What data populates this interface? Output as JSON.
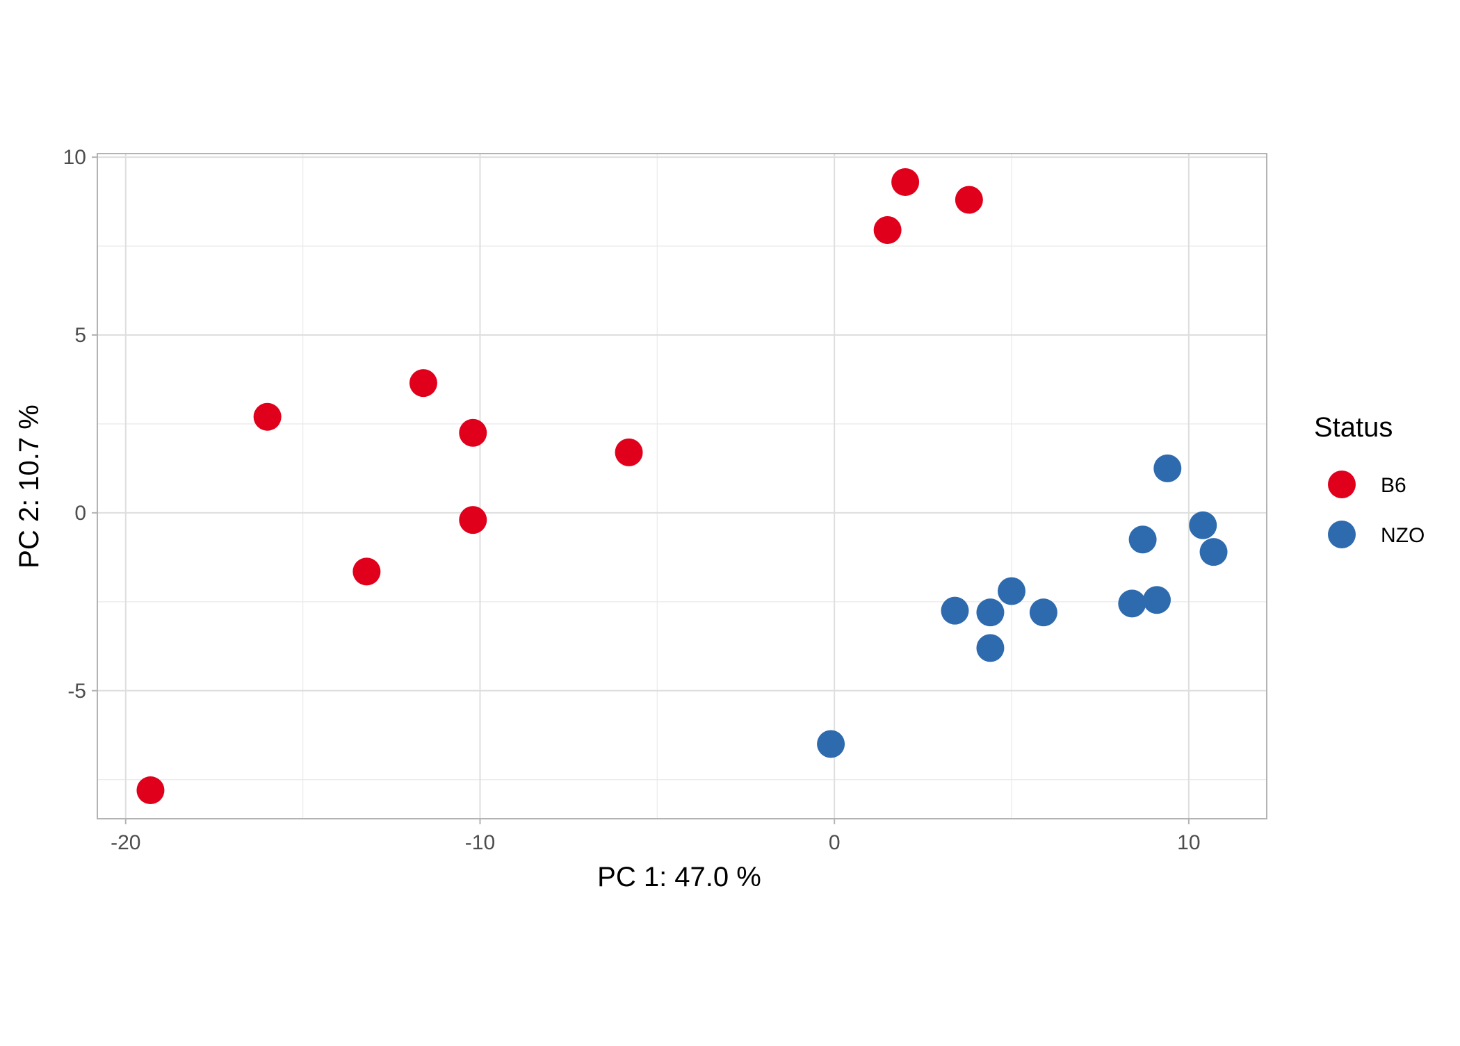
{
  "chart_data": {
    "type": "scatter",
    "xlabel": "PC 1: 47.0 %",
    "ylabel": "PC 2: 10.7 %",
    "xlim": [
      -20.8,
      12.2
    ],
    "ylim": [
      -8.6,
      10.1
    ],
    "x_ticks": [
      -20,
      -10,
      0,
      10
    ],
    "y_ticks": [
      -5,
      0,
      5,
      10
    ],
    "x_tick_labels": [
      "-20",
      "-10",
      "0",
      "10"
    ],
    "y_tick_labels": [
      "-5",
      "0",
      "5",
      "10"
    ],
    "grid": true,
    "legend": {
      "title": "Status",
      "placement": "right"
    },
    "series": [
      {
        "name": "B6",
        "color": "#E0001B",
        "points": [
          {
            "x": -19.3,
            "y": -7.8
          },
          {
            "x": -16.0,
            "y": 2.7
          },
          {
            "x": -13.2,
            "y": -1.65
          },
          {
            "x": -11.6,
            "y": 3.65
          },
          {
            "x": -10.2,
            "y": 2.25
          },
          {
            "x": -10.2,
            "y": -0.2
          },
          {
            "x": -5.8,
            "y": 1.7
          },
          {
            "x": 1.5,
            "y": 7.95
          },
          {
            "x": 2.0,
            "y": 9.3
          },
          {
            "x": 3.8,
            "y": 8.8
          }
        ]
      },
      {
        "name": "NZO",
        "color": "#2D6AAE",
        "points": [
          {
            "x": -0.1,
            "y": -6.5
          },
          {
            "x": 3.4,
            "y": -2.75
          },
          {
            "x": 4.4,
            "y": -2.8
          },
          {
            "x": 4.4,
            "y": -3.8
          },
          {
            "x": 5.0,
            "y": -2.2
          },
          {
            "x": 5.9,
            "y": -2.8
          },
          {
            "x": 8.4,
            "y": -2.55
          },
          {
            "x": 8.7,
            "y": -0.75
          },
          {
            "x": 9.1,
            "y": -2.45
          },
          {
            "x": 9.4,
            "y": 1.25
          },
          {
            "x": 10.4,
            "y": -0.35
          },
          {
            "x": 10.7,
            "y": -1.1
          }
        ]
      }
    ]
  }
}
